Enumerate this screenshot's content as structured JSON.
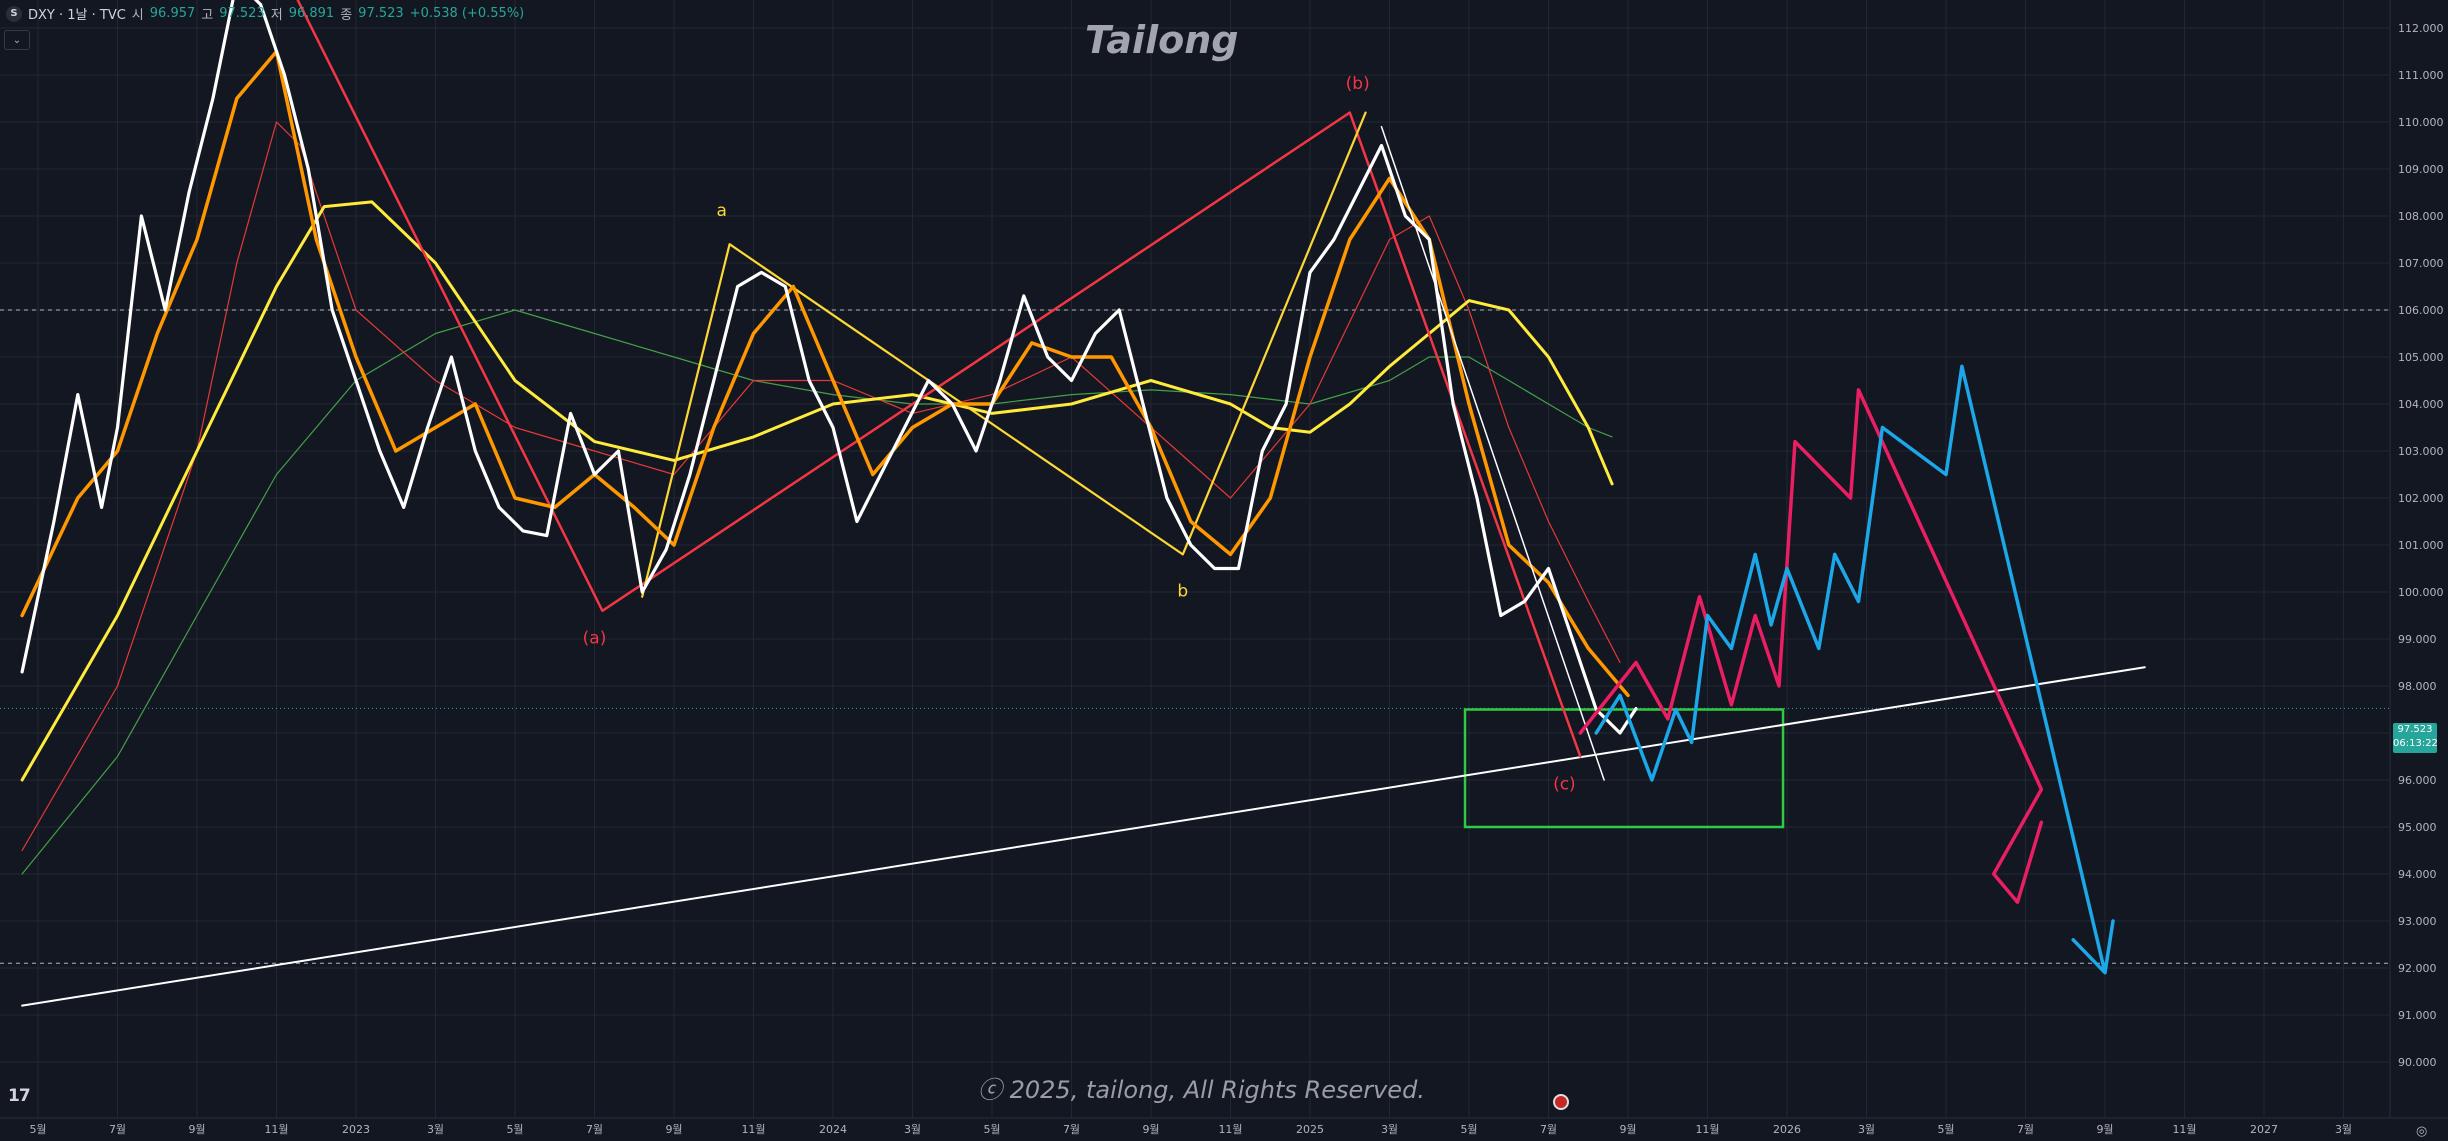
{
  "header": {
    "symbol_icon": "S",
    "symbol_title": "DXY · 1날 · TVC",
    "open_label": "시",
    "open_value": "96.957",
    "high_label": "고",
    "high_value": "97.523",
    "low_label": "저",
    "low_value": "96.891",
    "close_label": "종",
    "close_value": "97.523",
    "change": "+0.538 (+0.55%)",
    "collapse_icon": "chevron-down-icon"
  },
  "watermark": "Tailong",
  "copyright": "ⓒ 2025, tailong, All Rights Reserved.",
  "current_price": {
    "value": "97.523",
    "countdown": "06:13:22"
  },
  "colors": {
    "background": "#131722",
    "price": "#ffffff",
    "ema_orange": "#ff9800",
    "ma_yellow": "#ffeb3b",
    "ma_red": "#e53935",
    "ma_green": "#43a047",
    "wave_red": "#f23645",
    "wave_yellow": "#fdd835",
    "forecast_pink": "#e91e63",
    "forecast_blue": "#1ca7e8",
    "box": "#2ecc40",
    "trendline": "#ffffff",
    "up": "#26a69a"
  },
  "chart_data": {
    "type": "line",
    "title": "DXY · 1날 · TVC",
    "ylim": [
      89.5,
      113.5
    ],
    "y_ticks": [
      "112.000",
      "111.000",
      "110.000",
      "109.000",
      "108.000",
      "107.000",
      "106.000",
      "105.000",
      "104.000",
      "103.000",
      "102.000",
      "101.000",
      "100.000",
      "99.000",
      "98.000",
      "97.000",
      "96.000",
      "95.000",
      "94.000",
      "93.000",
      "92.000",
      "91.000",
      "90.000"
    ],
    "x_ticks": [
      "5월",
      "7월",
      "9월",
      "11월",
      "2023",
      "3월",
      "5월",
      "7월",
      "9월",
      "11월",
      "2024",
      "3월",
      "5월",
      "7월",
      "9월",
      "11월",
      "2025",
      "3월",
      "5월",
      "7월",
      "9월",
      "11월",
      "2026",
      "3월",
      "5월",
      "7월",
      "9월",
      "11월",
      "2027",
      "3월"
    ],
    "horizontal_levels": [
      106.0,
      92.1
    ],
    "series": [
      {
        "role": "price",
        "values": [
          [
            -0.2,
            98.3
          ],
          [
            0.2,
            101.5
          ],
          [
            0.5,
            104.2
          ],
          [
            0.8,
            101.8
          ],
          [
            1.0,
            103.5
          ],
          [
            1.3,
            108.0
          ],
          [
            1.6,
            106.0
          ],
          [
            1.9,
            108.5
          ],
          [
            2.2,
            110.5
          ],
          [
            2.5,
            113.0
          ],
          [
            2.8,
            112.5
          ],
          [
            3.1,
            111.0
          ],
          [
            3.4,
            109.0
          ],
          [
            3.7,
            106.0
          ],
          [
            4.0,
            104.5
          ],
          [
            4.3,
            103.0
          ],
          [
            4.6,
            101.8
          ],
          [
            4.9,
            103.5
          ],
          [
            5.2,
            105.0
          ],
          [
            5.5,
            103.0
          ],
          [
            5.8,
            101.8
          ],
          [
            6.1,
            101.3
          ],
          [
            6.4,
            101.2
          ],
          [
            6.7,
            103.8
          ],
          [
            7.0,
            102.5
          ],
          [
            7.3,
            103.0
          ],
          [
            7.6,
            100.0
          ],
          [
            7.9,
            100.9
          ],
          [
            8.2,
            102.5
          ],
          [
            8.5,
            104.5
          ],
          [
            8.8,
            106.5
          ],
          [
            9.1,
            106.8
          ],
          [
            9.4,
            106.5
          ],
          [
            9.7,
            104.5
          ],
          [
            10.0,
            103.5
          ],
          [
            10.3,
            101.5
          ],
          [
            10.6,
            102.5
          ],
          [
            10.9,
            103.5
          ],
          [
            11.2,
            104.5
          ],
          [
            11.5,
            104.0
          ],
          [
            11.8,
            103.0
          ],
          [
            12.1,
            104.5
          ],
          [
            12.4,
            106.3
          ],
          [
            12.7,
            105.0
          ],
          [
            13.0,
            104.5
          ],
          [
            13.3,
            105.5
          ],
          [
            13.6,
            106.0
          ],
          [
            13.9,
            104.0
          ],
          [
            14.2,
            102.0
          ],
          [
            14.5,
            101.0
          ],
          [
            14.8,
            100.5
          ],
          [
            15.1,
            100.5
          ],
          [
            15.4,
            103.0
          ],
          [
            15.7,
            104.0
          ],
          [
            16.0,
            106.8
          ],
          [
            16.3,
            107.5
          ],
          [
            16.6,
            108.5
          ],
          [
            16.9,
            109.5
          ],
          [
            17.2,
            108.0
          ],
          [
            17.5,
            107.5
          ],
          [
            17.8,
            104.0
          ],
          [
            18.1,
            102.0
          ],
          [
            18.4,
            99.5
          ],
          [
            18.7,
            99.8
          ],
          [
            19.0,
            100.5
          ],
          [
            19.3,
            99.0
          ],
          [
            19.6,
            97.5
          ],
          [
            19.9,
            97.0
          ],
          [
            20.1,
            97.52
          ]
        ]
      },
      {
        "role": "ema-orange",
        "values": [
          [
            -0.2,
            99.5
          ],
          [
            0.5,
            102.0
          ],
          [
            1.0,
            103.0
          ],
          [
            1.5,
            105.5
          ],
          [
            2.0,
            107.5
          ],
          [
            2.5,
            110.5
          ],
          [
            3.0,
            111.5
          ],
          [
            3.5,
            107.5
          ],
          [
            4.0,
            105.0
          ],
          [
            4.5,
            103.0
          ],
          [
            5.0,
            103.5
          ],
          [
            5.5,
            104.0
          ],
          [
            6.0,
            102.0
          ],
          [
            6.5,
            101.8
          ],
          [
            7.0,
            102.5
          ],
          [
            7.5,
            101.8
          ],
          [
            8.0,
            101.0
          ],
          [
            8.5,
            103.5
          ],
          [
            9.0,
            105.5
          ],
          [
            9.5,
            106.5
          ],
          [
            10.0,
            104.5
          ],
          [
            10.5,
            102.5
          ],
          [
            11.0,
            103.5
          ],
          [
            11.5,
            104.0
          ],
          [
            12.0,
            104.0
          ],
          [
            12.5,
            105.3
          ],
          [
            13.0,
            105.0
          ],
          [
            13.5,
            105.0
          ],
          [
            14.0,
            103.5
          ],
          [
            14.5,
            101.5
          ],
          [
            15.0,
            100.8
          ],
          [
            15.5,
            102.0
          ],
          [
            16.0,
            105.0
          ],
          [
            16.5,
            107.5
          ],
          [
            17.0,
            108.8
          ],
          [
            17.5,
            107.5
          ],
          [
            18.0,
            104.0
          ],
          [
            18.5,
            101.0
          ],
          [
            19.0,
            100.2
          ],
          [
            19.5,
            98.8
          ],
          [
            20.0,
            97.8
          ]
        ]
      },
      {
        "role": "ma-yellow",
        "values": [
          [
            -0.2,
            96.0
          ],
          [
            1.0,
            99.5
          ],
          [
            2.0,
            103.0
          ],
          [
            3.0,
            106.5
          ],
          [
            3.6,
            108.2
          ],
          [
            4.2,
            108.3
          ],
          [
            5.0,
            107.0
          ],
          [
            6.0,
            104.5
          ],
          [
            7.0,
            103.2
          ],
          [
            8.0,
            102.8
          ],
          [
            9.0,
            103.3
          ],
          [
            10.0,
            104.0
          ],
          [
            11.0,
            104.2
          ],
          [
            12.0,
            103.8
          ],
          [
            13.0,
            104.0
          ],
          [
            14.0,
            104.5
          ],
          [
            15.0,
            104.0
          ],
          [
            15.5,
            103.5
          ],
          [
            16.0,
            103.4
          ],
          [
            16.5,
            104.0
          ],
          [
            17.0,
            104.8
          ],
          [
            17.5,
            105.5
          ],
          [
            18.0,
            106.2
          ],
          [
            18.5,
            106.0
          ],
          [
            19.0,
            105.0
          ],
          [
            19.5,
            103.5
          ],
          [
            19.8,
            102.3
          ]
        ]
      },
      {
        "role": "ma-red",
        "values": [
          [
            -0.2,
            94.5
          ],
          [
            1.0,
            98.0
          ],
          [
            2.0,
            103.0
          ],
          [
            2.5,
            107.0
          ],
          [
            3.0,
            110.0
          ],
          [
            3.3,
            109.5
          ],
          [
            4.0,
            106.0
          ],
          [
            5.0,
            104.5
          ],
          [
            6.0,
            103.5
          ],
          [
            7.0,
            103.0
          ],
          [
            8.0,
            102.5
          ],
          [
            9.0,
            104.5
          ],
          [
            10.0,
            104.5
          ],
          [
            11.0,
            103.8
          ],
          [
            12.0,
            104.2
          ],
          [
            13.0,
            105.0
          ],
          [
            14.0,
            103.5
          ],
          [
            15.0,
            102.0
          ],
          [
            16.0,
            104.0
          ],
          [
            17.0,
            107.5
          ],
          [
            17.5,
            108.0
          ],
          [
            18.0,
            106.0
          ],
          [
            18.5,
            103.5
          ],
          [
            19.0,
            101.5
          ],
          [
            19.5,
            99.8
          ],
          [
            19.9,
            98.5
          ]
        ]
      },
      {
        "role": "ma-green",
        "values": [
          [
            -0.2,
            94.0
          ],
          [
            1.0,
            96.5
          ],
          [
            2.0,
            99.5
          ],
          [
            3.0,
            102.5
          ],
          [
            4.0,
            104.5
          ],
          [
            5.0,
            105.5
          ],
          [
            6.0,
            106.0
          ],
          [
            7.0,
            105.5
          ],
          [
            8.0,
            105.0
          ],
          [
            9.0,
            104.5
          ],
          [
            10.0,
            104.2
          ],
          [
            11.0,
            104.0
          ],
          [
            12.0,
            104.0
          ],
          [
            13.0,
            104.2
          ],
          [
            14.0,
            104.3
          ],
          [
            15.0,
            104.2
          ],
          [
            16.0,
            104.0
          ],
          [
            17.0,
            104.5
          ],
          [
            17.5,
            105.0
          ],
          [
            18.0,
            105.0
          ],
          [
            18.5,
            104.5
          ],
          [
            19.0,
            104.0
          ],
          [
            19.5,
            103.5
          ],
          [
            19.8,
            103.3
          ]
        ]
      },
      {
        "role": "wave-red",
        "values": [
          [
            3.0,
            113.5
          ],
          [
            7.1,
            99.6
          ],
          [
            16.5,
            110.2
          ],
          [
            19.4,
            96.5
          ]
        ]
      },
      {
        "role": "wave-yellow",
        "values": [
          [
            7.6,
            99.9
          ],
          [
            8.7,
            107.4
          ],
          [
            14.4,
            100.8
          ],
          [
            16.7,
            110.2
          ]
        ]
      },
      {
        "role": "forecast-pink",
        "values": [
          [
            19.4,
            97.0
          ],
          [
            20.1,
            98.5
          ],
          [
            20.5,
            97.3
          ],
          [
            20.9,
            99.9
          ],
          [
            21.3,
            97.6
          ],
          [
            21.6,
            99.5
          ],
          [
            21.9,
            98.0
          ],
          [
            22.1,
            103.2
          ],
          [
            22.8,
            102.0
          ],
          [
            22.9,
            104.3
          ],
          [
            25.2,
            95.8
          ],
          [
            24.6,
            94.0
          ],
          [
            24.9,
            93.4
          ],
          [
            25.2,
            95.1
          ]
        ]
      },
      {
        "role": "forecast-blue",
        "values": [
          [
            19.6,
            97.0
          ],
          [
            19.9,
            97.8
          ],
          [
            20.3,
            96.0
          ],
          [
            20.6,
            97.5
          ],
          [
            20.8,
            96.8
          ],
          [
            21.0,
            99.5
          ],
          [
            21.3,
            98.8
          ],
          [
            21.6,
            100.8
          ],
          [
            21.8,
            99.3
          ],
          [
            22.0,
            100.5
          ],
          [
            22.4,
            98.8
          ],
          [
            22.6,
            100.8
          ],
          [
            22.9,
            99.8
          ],
          [
            23.2,
            103.5
          ],
          [
            24.0,
            102.5
          ],
          [
            24.2,
            104.8
          ],
          [
            26.0,
            91.9
          ],
          [
            25.6,
            92.6
          ],
          [
            26.0,
            91.9
          ],
          [
            26.1,
            93.0
          ]
        ]
      },
      {
        "role": "trendline-base",
        "values": [
          [
            -0.2,
            91.2
          ],
          [
            26.5,
            98.4
          ]
        ]
      },
      {
        "role": "trendline-top",
        "values": [
          [
            16.9,
            109.9
          ],
          [
            19.7,
            96.0
          ]
        ]
      }
    ],
    "annotations": [
      {
        "text": "(a)",
        "x": 7.0,
        "y": 98.9,
        "color": "#f23645"
      },
      {
        "text": "a",
        "x": 8.6,
        "y": 108.0,
        "color": "#fdd835"
      },
      {
        "text": "b",
        "x": 14.4,
        "y": 99.9,
        "color": "#fdd835"
      },
      {
        "text": "(b)",
        "x": 16.6,
        "y": 110.7,
        "color": "#f23645"
      },
      {
        "text": "(c)",
        "x": 19.2,
        "y": 95.8,
        "color": "#f23645"
      }
    ],
    "boxes": [
      {
        "x0": 17.95,
        "x1": 21.95,
        "y0": 95.0,
        "y1": 97.5
      }
    ]
  }
}
